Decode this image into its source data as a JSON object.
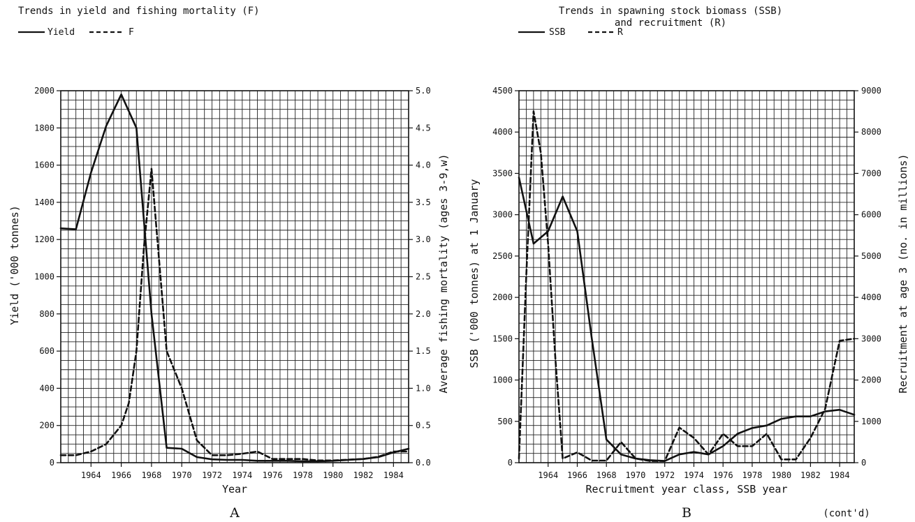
{
  "note": "(cont'd)",
  "chart_data": [
    {
      "type": "line",
      "panel_label": "A",
      "title": "Trends in yield and fishing mortality (F)",
      "xlabel": "Year",
      "ylabel": "Yield ('000 tonnes)",
      "y2label": "Average fishing mortality (ages 3-9,w)",
      "xlim": [
        1962,
        1985
      ],
      "ylim": [
        0,
        2000
      ],
      "y2lim": [
        0,
        5
      ],
      "x_ticks": [
        "1964",
        "1966",
        "1968",
        "1970",
        "1972",
        "1974",
        "1976",
        "1978",
        "1980",
        "1982",
        "1984"
      ],
      "y_ticks": [
        "0",
        "200",
        "400",
        "600",
        "800",
        "1000",
        "1200",
        "1400",
        "1600",
        "1800",
        "2000"
      ],
      "y2_ticks": [
        "0.0",
        "0.5",
        "1.0",
        "1.5",
        "2.0",
        "2.5",
        "3.0",
        "3.5",
        "4.0",
        "4.5",
        "5.0"
      ],
      "grid": true,
      "legend_position": "top-left",
      "series": [
        {
          "name": "Yield",
          "axis": "left",
          "style": "solid",
          "x": [
            1962,
            1963,
            1964,
            1965,
            1966,
            1967,
            1968,
            1969,
            1970,
            1971,
            1972,
            1973,
            1974,
            1975,
            1976,
            1977,
            1978,
            1979,
            1980,
            1981,
            1982,
            1983,
            1984,
            1985
          ],
          "y": [
            1260,
            1255,
            1560,
            1810,
            1980,
            1800,
            800,
            80,
            75,
            30,
            18,
            15,
            15,
            10,
            10,
            10,
            8,
            8,
            10,
            15,
            20,
            30,
            55,
            75
          ]
        },
        {
          "name": "F",
          "axis": "right",
          "style": "dashed",
          "x": [
            1962,
            1963,
            1964,
            1965,
            1966,
            1966.5,
            1967,
            1967.5,
            1968,
            1969,
            1970,
            1971,
            1972,
            1973,
            1974,
            1975,
            1976,
            1977,
            1978,
            1979,
            1980,
            1981,
            1982,
            1983,
            1984,
            1985
          ],
          "y": [
            0.1,
            0.1,
            0.15,
            0.25,
            0.5,
            0.8,
            1.5,
            2.9,
            3.95,
            1.5,
            1.0,
            0.3,
            0.1,
            0.1,
            0.12,
            0.15,
            0.05,
            0.05,
            0.05,
            0.03,
            0.03,
            0.04,
            0.05,
            0.08,
            0.15,
            0.15
          ]
        }
      ]
    },
    {
      "type": "line",
      "panel_label": "B",
      "title": "Trends in spawning stock biomass (SSB) and recruitment (R)",
      "title_lines": [
        "Trends in spawning stock biomass (SSB)",
        "and recruitment (R)"
      ],
      "xlabel": "Recruitment year class, SSB year",
      "ylabel": "SSB ('000 tonnes) at 1 January",
      "y2label": "Recruitment at age 3 (no. in millions)",
      "xlim": [
        1962,
        1985
      ],
      "ylim": [
        0,
        4500
      ],
      "y2lim": [
        0,
        9000
      ],
      "x_ticks": [
        "1964",
        "1966",
        "1968",
        "1970",
        "1972",
        "1974",
        "1976",
        "1978",
        "1980",
        "1982",
        "1984"
      ],
      "y_ticks": [
        "0",
        "500",
        "1000",
        "1500",
        "2000",
        "2500",
        "3000",
        "3500",
        "4000",
        "4500"
      ],
      "y2_ticks": [
        "0",
        "1000",
        "2000",
        "3000",
        "4000",
        "5000",
        "6000",
        "7000",
        "8000",
        "9000"
      ],
      "grid": true,
      "legend_position": "top-left",
      "series": [
        {
          "name": "SSB",
          "axis": "left",
          "style": "solid",
          "x": [
            1962,
            1963,
            1964,
            1965,
            1966,
            1967,
            1968,
            1969,
            1970,
            1971,
            1972,
            1973,
            1974,
            1975,
            1976,
            1977,
            1978,
            1979,
            1980,
            1981,
            1982,
            1983,
            1984,
            1985
          ],
          "y": [
            3450,
            2650,
            2800,
            3220,
            2800,
            1500,
            280,
            100,
            50,
            30,
            20,
            100,
            130,
            100,
            200,
            350,
            420,
            450,
            530,
            560,
            560,
            620,
            640,
            580
          ]
        },
        {
          "name": "R",
          "axis": "right",
          "style": "dashed",
          "x": [
            1962,
            1962.5,
            1963,
            1963.5,
            1964,
            1964.5,
            1965,
            1966,
            1967,
            1968,
            1969,
            1970,
            1971,
            1972,
            1973,
            1974,
            1975,
            1976,
            1977,
            1978,
            1979,
            1980,
            1981,
            1982,
            1983,
            1984,
            1985
          ],
          "y": [
            100,
            4500,
            8500,
            7500,
            5300,
            2500,
            100,
            250,
            50,
            50,
            500,
            100,
            40,
            40,
            850,
            600,
            200,
            700,
            400,
            400,
            700,
            80,
            80,
            600,
            1300,
            2950,
            3000
          ]
        }
      ]
    }
  ]
}
